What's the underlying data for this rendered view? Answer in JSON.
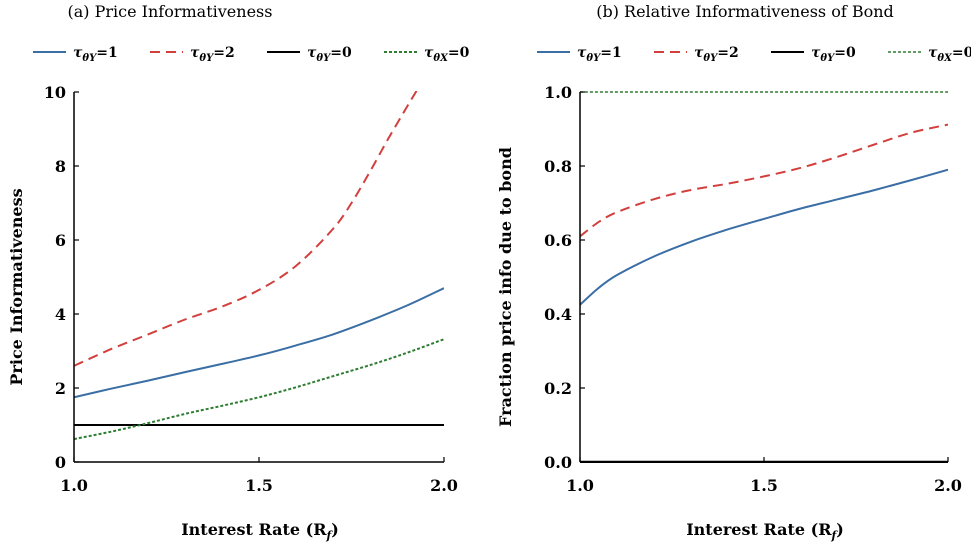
{
  "chart_data": [
    {
      "type": "line",
      "title": "(a) Price Informativeness",
      "xlabel": "Interest Rate (R",
      "xlabel_sub": "f",
      "ylabel": "Price Informativeness",
      "xlim": [
        1.0,
        2.0
      ],
      "ylim": [
        0,
        10
      ],
      "xticks": [
        1.0,
        1.5,
        2.0
      ],
      "xtick_labels": [
        "1.0",
        "1.5",
        "2.0"
      ],
      "yticks": [
        0,
        2,
        4,
        6,
        8,
        10
      ],
      "ytick_labels": [
        "0",
        "2",
        "4",
        "6",
        "8",
        "10"
      ],
      "legend_position": "top",
      "series": [
        {
          "legend": {
            "sym": "τ",
            "sub": "θY",
            "val": "=1"
          },
          "color": "#3a6ea5",
          "dash": "",
          "width": 2,
          "x": [
            1.0,
            1.1,
            1.2,
            1.3,
            1.4,
            1.5,
            1.6,
            1.7,
            1.8,
            1.9,
            2.0
          ],
          "y": [
            1.75,
            1.98,
            2.2,
            2.43,
            2.65,
            2.88,
            3.15,
            3.45,
            3.82,
            4.23,
            4.7
          ]
        },
        {
          "legend": {
            "sym": "τ",
            "sub": "θY",
            "val": "=2"
          },
          "color": "#d2403e",
          "dash": "10,6",
          "width": 2,
          "x": [
            1.0,
            1.1,
            1.2,
            1.3,
            1.4,
            1.5,
            1.6,
            1.7,
            1.75,
            1.8,
            1.85,
            1.9,
            1.93
          ],
          "y": [
            2.6,
            3.05,
            3.45,
            3.85,
            4.2,
            4.65,
            5.3,
            6.3,
            7.0,
            7.85,
            8.75,
            9.6,
            10.1
          ]
        },
        {
          "legend": {
            "sym": "τ",
            "sub": "θY",
            "val": "=0"
          },
          "color": "#000000",
          "dash": "",
          "width": 2,
          "x": [
            1.0,
            2.0
          ],
          "y": [
            1.0,
            1.0
          ]
        },
        {
          "legend": {
            "sym": "τ",
            "sub": "θX",
            "val": "=0"
          },
          "color": "#2e7d32",
          "dash": "3,2",
          "width": 2,
          "x": [
            1.0,
            1.1,
            1.2,
            1.3,
            1.4,
            1.5,
            1.6,
            1.7,
            1.8,
            1.9,
            2.0
          ],
          "y": [
            0.62,
            0.82,
            1.05,
            1.3,
            1.52,
            1.75,
            2.02,
            2.32,
            2.62,
            2.95,
            3.32
          ]
        }
      ]
    },
    {
      "type": "line",
      "title": "(b) Relative Informativeness of Bond",
      "xlabel": "Interest Rate (R",
      "xlabel_sub": "f",
      "ylabel": "Fraction price info due to bond",
      "xlim": [
        1.0,
        2.0
      ],
      "ylim": [
        0.0,
        1.0
      ],
      "xticks": [
        1.0,
        1.5,
        2.0
      ],
      "xtick_labels": [
        "1.0",
        "1.5",
        "2.0"
      ],
      "yticks": [
        0.0,
        0.2,
        0.4,
        0.6,
        0.8,
        1.0
      ],
      "ytick_labels": [
        "0.0",
        "0.2",
        "0.4",
        "0.6",
        "0.8",
        "1.0"
      ],
      "legend_position": "top",
      "series": [
        {
          "legend": {
            "sym": "τ",
            "sub": "θY",
            "val": "=1"
          },
          "color": "#3a6ea5",
          "dash": "",
          "width": 2,
          "x": [
            1.0,
            1.05,
            1.1,
            1.2,
            1.3,
            1.4,
            1.5,
            1.6,
            1.7,
            1.8,
            1.9,
            2.0
          ],
          "y": [
            0.425,
            0.47,
            0.505,
            0.555,
            0.595,
            0.628,
            0.657,
            0.685,
            0.71,
            0.735,
            0.762,
            0.79
          ]
        },
        {
          "legend": {
            "sym": "τ",
            "sub": "θY",
            "val": "=2"
          },
          "color": "#d2403e",
          "dash": "10,6",
          "width": 2,
          "x": [
            1.0,
            1.05,
            1.1,
            1.2,
            1.3,
            1.4,
            1.5,
            1.6,
            1.7,
            1.8,
            1.9,
            2.0
          ],
          "y": [
            0.61,
            0.648,
            0.675,
            0.71,
            0.735,
            0.752,
            0.772,
            0.795,
            0.825,
            0.858,
            0.89,
            0.912
          ]
        },
        {
          "legend": {
            "sym": "τ",
            "sub": "θY",
            "val": "=0"
          },
          "color": "#000000",
          "dash": "",
          "width": 2.5,
          "x": [
            1.0,
            2.0
          ],
          "y": [
            0.0,
            0.0
          ]
        },
        {
          "legend": {
            "sym": "τ",
            "sub": "θX",
            "val": "=0"
          },
          "color": "#2e7d32",
          "dash": "3,2",
          "width": 1.6,
          "x": [
            1.0,
            2.0
          ],
          "y": [
            1.0,
            1.0
          ]
        }
      ]
    }
  ]
}
